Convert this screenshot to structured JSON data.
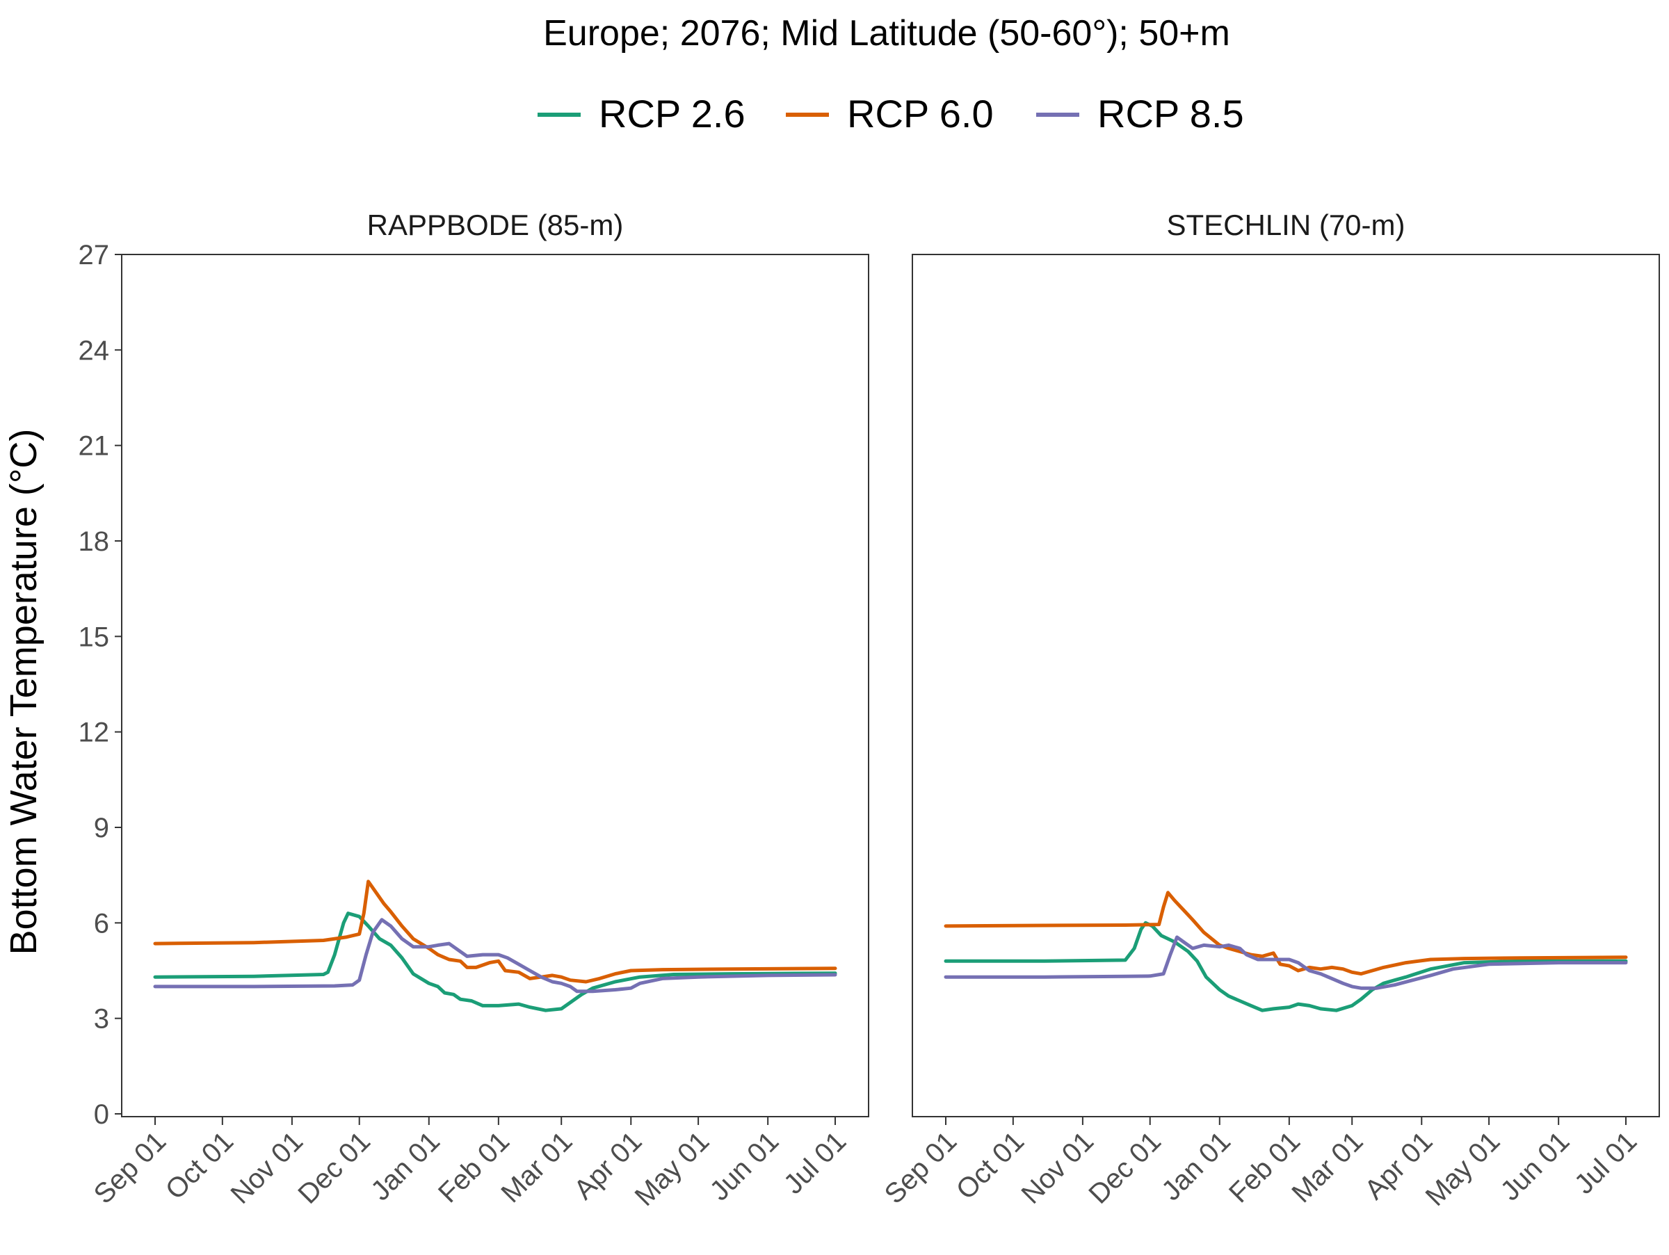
{
  "title": "Europe;  2076;  Mid Latitude (50-60°);  50+m",
  "legend": {
    "placement": "top",
    "items": [
      {
        "label": "RCP 2.6",
        "color": "#1b9e77"
      },
      {
        "label": "RCP 6.0",
        "color": "#d95f02"
      },
      {
        "label": "RCP 8.5",
        "color": "#7570b3"
      }
    ]
  },
  "ylabel": "Bottom Water Temperature (°C)",
  "chart_data": {
    "type": "line",
    "title": "Europe;  2076;  Mid Latitude (50-60°);  50+m",
    "ylabel": "Bottom Water Temperature (°C)",
    "xlabel": "",
    "grid": false,
    "legend_placement": "top",
    "ylim": [
      0,
      27
    ],
    "yticks": [
      0,
      3,
      6,
      9,
      12,
      15,
      18,
      21,
      24,
      27
    ],
    "xlim": [
      "Sep 01",
      "Jul 01"
    ],
    "xticks": [
      "Sep 01",
      "Oct 01",
      "Nov 01",
      "Dec 01",
      "Jan 01",
      "Feb 01",
      "Mar 01",
      "Apr 01",
      "May 01",
      "Jun 01",
      "Jul 01"
    ],
    "panels": [
      {
        "title": "RAPPBODE (85-m)",
        "series": [
          {
            "name": "RCP 2.6",
            "color": "#1b9e77",
            "points": [
              [
                "Sep 01",
                4.3
              ],
              [
                "Oct 15",
                4.32
              ],
              [
                "Nov 15",
                4.38
              ],
              [
                "Nov 17",
                4.45
              ],
              [
                "Nov 20",
                5.0
              ],
              [
                "Nov 24",
                6.0
              ],
              [
                "Nov 26",
                6.3
              ],
              [
                "Dec 01",
                6.2
              ],
              [
                "Dec 05",
                5.9
              ],
              [
                "Dec 10",
                5.5
              ],
              [
                "Dec 15",
                5.3
              ],
              [
                "Dec 20",
                4.9
              ],
              [
                "Dec 25",
                4.4
              ],
              [
                "Jan 01",
                4.1
              ],
              [
                "Jan 05",
                4.0
              ],
              [
                "Jan 08",
                3.8
              ],
              [
                "Jan 12",
                3.75
              ],
              [
                "Jan 15",
                3.6
              ],
              [
                "Jan 20",
                3.55
              ],
              [
                "Jan 25",
                3.4
              ],
              [
                "Feb 01",
                3.4
              ],
              [
                "Feb 10",
                3.45
              ],
              [
                "Feb 15",
                3.35
              ],
              [
                "Feb 22",
                3.25
              ],
              [
                "Mar 01",
                3.3
              ],
              [
                "Mar 05",
                3.5
              ],
              [
                "Mar 10",
                3.75
              ],
              [
                "Mar 15",
                3.95
              ],
              [
                "Mar 25",
                4.15
              ],
              [
                "Apr 05",
                4.3
              ],
              [
                "Apr 20",
                4.38
              ],
              [
                "May 15",
                4.4
              ],
              [
                "Jul 01",
                4.42
              ]
            ]
          },
          {
            "name": "RCP 6.0",
            "color": "#d95f02",
            "points": [
              [
                "Sep 01",
                5.35
              ],
              [
                "Oct 15",
                5.38
              ],
              [
                "Nov 15",
                5.45
              ],
              [
                "Nov 25",
                5.55
              ],
              [
                "Dec 01",
                5.65
              ],
              [
                "Dec 03",
                6.3
              ],
              [
                "Dec 05",
                7.3
              ],
              [
                "Dec 08",
                7.0
              ],
              [
                "Dec 12",
                6.6
              ],
              [
                "Dec 15",
                6.35
              ],
              [
                "Dec 20",
                5.9
              ],
              [
                "Dec 25",
                5.5
              ],
              [
                "Jan 01",
                5.2
              ],
              [
                "Jan 05",
                5.0
              ],
              [
                "Jan 10",
                4.85
              ],
              [
                "Jan 15",
                4.8
              ],
              [
                "Jan 18",
                4.6
              ],
              [
                "Jan 22",
                4.6
              ],
              [
                "Jan 28",
                4.75
              ],
              [
                "Feb 01",
                4.8
              ],
              [
                "Feb 04",
                4.5
              ],
              [
                "Feb 10",
                4.45
              ],
              [
                "Feb 15",
                4.25
              ],
              [
                "Feb 20",
                4.3
              ],
              [
                "Feb 25",
                4.35
              ],
              [
                "Mar 01",
                4.3
              ],
              [
                "Mar 05",
                4.2
              ],
              [
                "Mar 12",
                4.15
              ],
              [
                "Mar 18",
                4.25
              ],
              [
                "Mar 25",
                4.4
              ],
              [
                "Apr 01",
                4.5
              ],
              [
                "Apr 15",
                4.53
              ],
              [
                "May 15",
                4.55
              ],
              [
                "Jul 01",
                4.57
              ]
            ]
          },
          {
            "name": "RCP 8.5",
            "color": "#7570b3",
            "points": [
              [
                "Sep 01",
                4.0
              ],
              [
                "Oct 15",
                4.0
              ],
              [
                "Nov 20",
                4.02
              ],
              [
                "Nov 28",
                4.05
              ],
              [
                "Dec 01",
                4.2
              ],
              [
                "Dec 04",
                5.0
              ],
              [
                "Dec 07",
                5.7
              ],
              [
                "Dec 11",
                6.1
              ],
              [
                "Dec 15",
                5.9
              ],
              [
                "Dec 20",
                5.5
              ],
              [
                "Dec 25",
                5.25
              ],
              [
                "Jan 01",
                5.25
              ],
              [
                "Jan 05",
                5.3
              ],
              [
                "Jan 10",
                5.35
              ],
              [
                "Jan 13",
                5.2
              ],
              [
                "Jan 18",
                4.95
              ],
              [
                "Jan 25",
                5.0
              ],
              [
                "Feb 01",
                5.0
              ],
              [
                "Feb 05",
                4.9
              ],
              [
                "Feb 10",
                4.7
              ],
              [
                "Feb 15",
                4.5
              ],
              [
                "Feb 20",
                4.3
              ],
              [
                "Feb 25",
                4.15
              ],
              [
                "Mar 01",
                4.1
              ],
              [
                "Mar 05",
                4.0
              ],
              [
                "Mar 08",
                3.85
              ],
              [
                "Mar 15",
                3.85
              ],
              [
                "Mar 25",
                3.9
              ],
              [
                "Apr 01",
                3.95
              ],
              [
                "Apr 05",
                4.1
              ],
              [
                "Apr 15",
                4.25
              ],
              [
                "May 01",
                4.3
              ],
              [
                "Jun 01",
                4.35
              ],
              [
                "Jul 01",
                4.37
              ]
            ]
          }
        ]
      },
      {
        "title": "STECHLIN (70-m)",
        "series": [
          {
            "name": "RCP 2.6",
            "color": "#1b9e77",
            "points": [
              [
                "Sep 01",
                4.8
              ],
              [
                "Oct 15",
                4.8
              ],
              [
                "Nov 20",
                4.83
              ],
              [
                "Nov 24",
                5.2
              ],
              [
                "Nov 27",
                5.8
              ],
              [
                "Nov 29",
                6.0
              ],
              [
                "Dec 02",
                5.9
              ],
              [
                "Dec 06",
                5.6
              ],
              [
                "Dec 12",
                5.4
              ],
              [
                "Dec 18",
                5.1
              ],
              [
                "Dec 22",
                4.8
              ],
              [
                "Dec 26",
                4.3
              ],
              [
                "Jan 01",
                3.9
              ],
              [
                "Jan 05",
                3.7
              ],
              [
                "Jan 10",
                3.55
              ],
              [
                "Jan 15",
                3.4
              ],
              [
                "Jan 20",
                3.25
              ],
              [
                "Jan 25",
                3.3
              ],
              [
                "Feb 01",
                3.35
              ],
              [
                "Feb 05",
                3.45
              ],
              [
                "Feb 10",
                3.4
              ],
              [
                "Feb 15",
                3.3
              ],
              [
                "Feb 22",
                3.25
              ],
              [
                "Mar 01",
                3.4
              ],
              [
                "Mar 05",
                3.6
              ],
              [
                "Mar 10",
                3.9
              ],
              [
                "Mar 15",
                4.1
              ],
              [
                "Mar 20",
                4.2
              ],
              [
                "Mar 25",
                4.3
              ],
              [
                "Apr 05",
                4.55
              ],
              [
                "Apr 20",
                4.75
              ],
              [
                "May 15",
                4.8
              ],
              [
                "Jul 01",
                4.8
              ]
            ]
          },
          {
            "name": "RCP 6.0",
            "color": "#d95f02",
            "points": [
              [
                "Sep 01",
                5.9
              ],
              [
                "Oct 15",
                5.92
              ],
              [
                "Nov 20",
                5.93
              ],
              [
                "Dec 05",
                5.95
              ],
              [
                "Dec 07",
                6.5
              ],
              [
                "Dec 09",
                6.95
              ],
              [
                "Dec 12",
                6.7
              ],
              [
                "Dec 16",
                6.4
              ],
              [
                "Dec 20",
                6.1
              ],
              [
                "Dec 25",
                5.7
              ],
              [
                "Jan 01",
                5.3
              ],
              [
                "Jan 05",
                5.2
              ],
              [
                "Jan 10",
                5.1
              ],
              [
                "Jan 15",
                5.0
              ],
              [
                "Jan 20",
                4.95
              ],
              [
                "Jan 25",
                5.05
              ],
              [
                "Jan 28",
                4.7
              ],
              [
                "Feb 01",
                4.65
              ],
              [
                "Feb 05",
                4.5
              ],
              [
                "Feb 10",
                4.6
              ],
              [
                "Feb 15",
                4.55
              ],
              [
                "Feb 20",
                4.6
              ],
              [
                "Feb 25",
                4.55
              ],
              [
                "Mar 01",
                4.45
              ],
              [
                "Mar 05",
                4.4
              ],
              [
                "Mar 10",
                4.5
              ],
              [
                "Mar 15",
                4.6
              ],
              [
                "Mar 25",
                4.75
              ],
              [
                "Apr 05",
                4.85
              ],
              [
                "Apr 20",
                4.88
              ],
              [
                "May 15",
                4.9
              ],
              [
                "Jul 01",
                4.92
              ]
            ]
          },
          {
            "name": "RCP 8.5",
            "color": "#7570b3",
            "points": [
              [
                "Sep 01",
                4.3
              ],
              [
                "Oct 15",
                4.3
              ],
              [
                "Nov 20",
                4.32
              ],
              [
                "Dec 01",
                4.33
              ],
              [
                "Dec 07",
                4.4
              ],
              [
                "Dec 10",
                5.0
              ],
              [
                "Dec 13",
                5.55
              ],
              [
                "Dec 16",
                5.4
              ],
              [
                "Dec 20",
                5.2
              ],
              [
                "Dec 25",
                5.3
              ],
              [
                "Jan 01",
                5.25
              ],
              [
                "Jan 05",
                5.3
              ],
              [
                "Jan 10",
                5.2
              ],
              [
                "Jan 13",
                5.0
              ],
              [
                "Jan 18",
                4.85
              ],
              [
                "Feb 01",
                4.85
              ],
              [
                "Feb 05",
                4.75
              ],
              [
                "Feb 10",
                4.5
              ],
              [
                "Feb 15",
                4.4
              ],
              [
                "Feb 20",
                4.25
              ],
              [
                "Feb 25",
                4.1
              ],
              [
                "Mar 01",
                4.0
              ],
              [
                "Mar 05",
                3.95
              ],
              [
                "Mar 12",
                3.95
              ],
              [
                "Mar 20",
                4.05
              ],
              [
                "Mar 28",
                4.2
              ],
              [
                "Apr 05",
                4.35
              ],
              [
                "Apr 15",
                4.55
              ],
              [
                "May 01",
                4.7
              ],
              [
                "Jun 01",
                4.75
              ],
              [
                "Jul 01",
                4.75
              ]
            ]
          }
        ]
      }
    ]
  }
}
